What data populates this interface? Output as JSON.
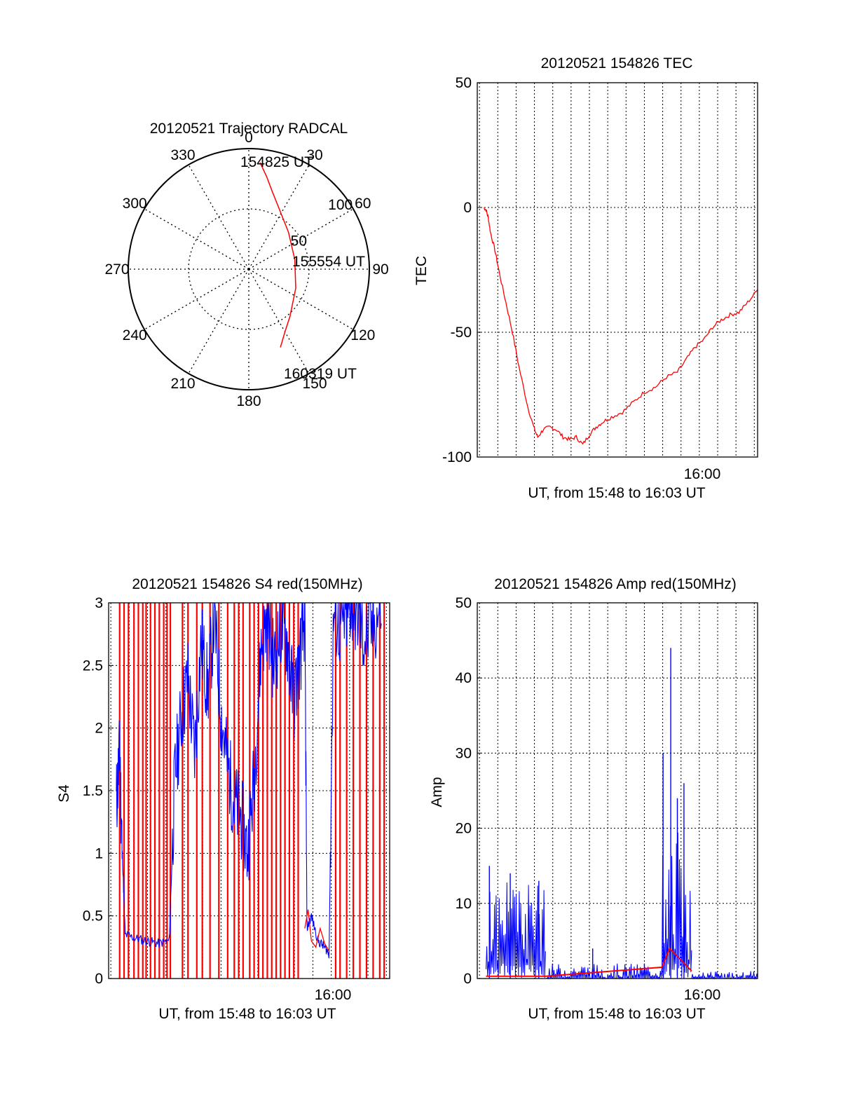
{
  "colors": {
    "red": "#ff0000",
    "blue": "#0000ff",
    "axis": "#000000",
    "grid": "#000000"
  },
  "chart_data": [
    {
      "type": "polar",
      "title": "20120521 Trajectory RADCAL",
      "angle_labels": [
        "0",
        "30",
        "60",
        "90",
        "120",
        "150",
        "180",
        "210",
        "240",
        "270",
        "300",
        "330"
      ],
      "angle_values": [
        0,
        30,
        60,
        90,
        120,
        150,
        180,
        210,
        240,
        270,
        300,
        330
      ],
      "radius_labels": [
        "50",
        "100"
      ],
      "radius_values": [
        50,
        100
      ],
      "rmax": 100,
      "trajectory": {
        "points": [
          [
            6,
            89
          ],
          [
            11,
            78
          ],
          [
            17,
            67
          ],
          [
            28,
            55
          ],
          [
            47,
            45
          ],
          [
            78,
            39
          ],
          [
            112,
            42
          ],
          [
            139,
            52
          ],
          [
            150,
            60
          ],
          [
            158,
            70
          ]
        ]
      },
      "annotations": [
        "154825 UT",
        "155554 UT",
        "160319 UT"
      ]
    },
    {
      "type": "line",
      "title": "20120521 154826 TEC",
      "xlabel": "UT, from 15:48 to 16:03 UT",
      "ylabel": "TEC",
      "xlim": [
        15.8,
        16.055
      ],
      "ylim": [
        -100,
        50
      ],
      "x_tick_labels": [
        "16:00"
      ],
      "y_tick_labels": [
        "50",
        "0",
        "-50",
        "-100"
      ],
      "y_tick_values": [
        50,
        0,
        -50,
        -100
      ],
      "series": [
        {
          "color": "red",
          "x": [
            15.806,
            15.808,
            15.81,
            15.812,
            15.816,
            15.82,
            15.826,
            15.832,
            15.838,
            15.846,
            15.852,
            15.855,
            15.86,
            15.866,
            15.872,
            15.878,
            15.884,
            15.89,
            15.896,
            15.902,
            15.908,
            15.914,
            15.922,
            15.932,
            15.942,
            15.952,
            15.962,
            15.972,
            15.982,
            15.99,
            15.998,
            16.006,
            16.014,
            16.022,
            16.03,
            16.038,
            16.046,
            16.055
          ],
          "y": [
            0,
            -1,
            -4,
            -10,
            -17,
            -26,
            -38,
            -50,
            -64,
            -80,
            -89,
            -92,
            -89,
            -88,
            -89,
            -92,
            -93,
            -92,
            -95,
            -91,
            -88,
            -86,
            -84,
            -82,
            -78,
            -74,
            -72,
            -68,
            -66,
            -61,
            -56,
            -53,
            -48,
            -45,
            -43,
            -42,
            -38,
            -33
          ]
        }
      ]
    },
    {
      "type": "line",
      "title": "20120521 154826 S4 red(150MHz)",
      "xlabel": "UT, from 15:48 to 16:03 UT",
      "ylabel": "S4",
      "xlim": [
        15.8,
        16.055
      ],
      "ylim": [
        0,
        3
      ],
      "x_tick_labels": [
        "16:00"
      ],
      "y_tick_labels": [
        "3",
        "2.5",
        "2",
        "1.5",
        "1",
        "0.5",
        "0"
      ],
      "y_tick_values": [
        3,
        2.5,
        2,
        1.5,
        1,
        0.5,
        0
      ],
      "series": [
        {
          "color": "blue",
          "x": [
            15.807,
            15.81,
            15.812,
            15.815,
            15.825,
            15.835,
            15.845,
            15.855,
            15.86,
            15.866,
            15.872,
            15.878,
            15.884,
            15.89,
            15.896,
            15.902,
            15.908,
            15.914,
            15.92,
            15.926,
            15.932,
            15.938,
            15.944,
            15.95,
            15.956,
            15.962,
            15.968,
            15.974,
            15.978,
            15.98,
            15.984,
            15.99,
            15.996,
            16.0,
            16.004,
            16.01,
            16.016,
            16.02,
            16.026,
            16.032,
            16.04,
            16.048
          ],
          "y": [
            1.4,
            1.8,
            1.1,
            0.35,
            0.32,
            0.3,
            0.28,
            0.3,
            1.6,
            2.1,
            2.4,
            1.8,
            2.7,
            2.3,
            2.9,
            2.1,
            1.7,
            1.4,
            1.3,
            1.0,
            1.6,
            2.6,
            2.9,
            2.5,
            2.8,
            2.7,
            2.2,
            2.6,
            2.9,
            0.4,
            0.5,
            0.3,
            0.25,
            0.2,
            2.9,
            2.8,
            2.9,
            3.0,
            2.9,
            2.7,
            2.8,
            3.0
          ]
        },
        {
          "color": "red",
          "x": [
            15.978,
            15.981,
            15.984,
            15.988,
            15.992,
            15.996,
            16.0
          ],
          "y": [
            0.4,
            0.55,
            0.3,
            0.25,
            0.4,
            0.28,
            0.22
          ],
          "spikes_to_top_x": [
            15.81,
            15.814,
            15.818,
            15.823,
            15.827,
            15.831,
            15.834,
            15.838,
            15.842,
            15.846,
            15.85,
            15.853,
            15.856,
            15.867,
            15.872,
            15.88,
            15.885,
            15.892,
            15.9,
            15.908,
            15.914,
            15.918,
            15.922,
            15.928,
            15.932,
            15.936,
            15.94,
            15.944,
            15.948,
            15.952,
            15.956,
            15.96,
            15.964,
            15.968,
            15.972,
            16.006,
            16.01,
            16.016,
            16.022,
            16.028,
            16.034,
            16.04,
            16.046,
            16.05
          ]
        }
      ]
    },
    {
      "type": "line",
      "title": "20120521 154826 Amp red(150MHz)",
      "xlabel": "UT, from 15:48 to 16:03 UT",
      "ylabel": "Amp",
      "xlim": [
        15.8,
        16.055
      ],
      "ylim": [
        0,
        50
      ],
      "x_tick_labels": [
        "16:00"
      ],
      "y_tick_labels": [
        "50",
        "40",
        "30",
        "20",
        "10",
        "0"
      ],
      "y_tick_values": [
        50,
        40,
        30,
        20,
        10,
        0
      ],
      "series": [
        {
          "color": "blue",
          "bands": [
            {
              "x_start": 15.808,
              "x_end": 15.862,
              "low": 2,
              "high": 13
            },
            {
              "x_start": 15.862,
              "x_end": 15.968,
              "low": 0,
              "high": 2
            },
            {
              "x_start": 15.968,
              "x_end": 15.995,
              "low": 2,
              "high": 20
            },
            {
              "x_start": 15.995,
              "x_end": 16.055,
              "low": 0,
              "high": 1
            }
          ],
          "peaks": [
            [
              15.811,
              15
            ],
            [
              15.83,
              14
            ],
            [
              15.856,
              13
            ],
            [
              15.905,
              4
            ],
            [
              15.952,
              2
            ],
            [
              15.969,
              30
            ],
            [
              15.976,
              44
            ],
            [
              15.982,
              24
            ],
            [
              15.988,
              26
            ]
          ]
        },
        {
          "color": "red",
          "x": [
            15.808,
            15.862,
            15.968,
            15.975,
            15.985,
            15.995
          ],
          "y": [
            0.3,
            0.3,
            1.5,
            4,
            2.5,
            1
          ]
        }
      ]
    }
  ]
}
